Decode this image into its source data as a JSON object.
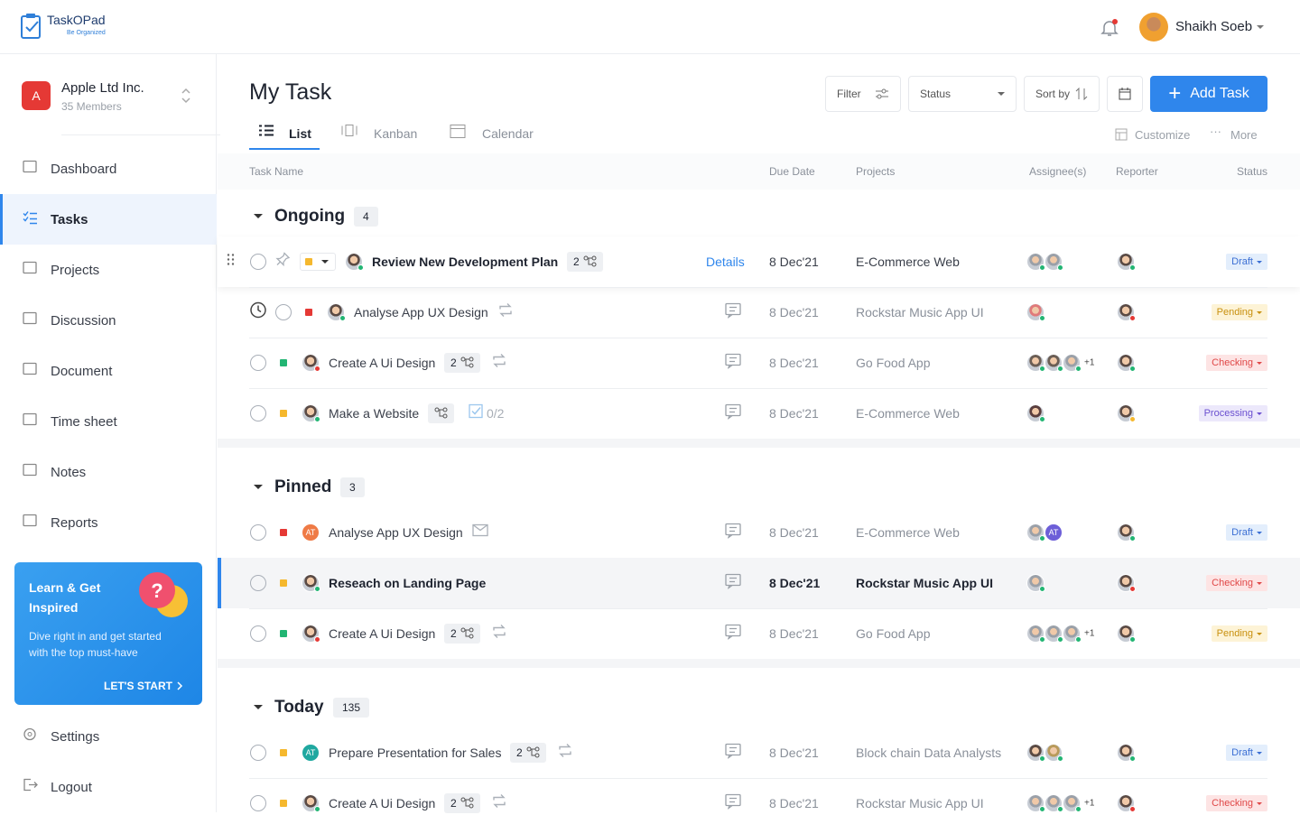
{
  "header": {
    "brand": "TaskOPad",
    "tagline": "Be Organized",
    "user": "Shaikh Soeb"
  },
  "sidebar": {
    "org_initial": "A",
    "org_name": "Apple Ltd Inc.",
    "org_members": "35 Members",
    "nav": [
      "Dashboard",
      "Tasks",
      "Projects",
      "Discussion",
      "Document",
      "Time sheet",
      "Notes",
      "Reports"
    ],
    "active": 1,
    "promo": {
      "title": "Learn & Get Inspired",
      "text": "Dive right in and get started with the top must-have",
      "cta": "LET'S START"
    },
    "footer": [
      "Settings",
      "Logout"
    ]
  },
  "page": {
    "title": "My Task",
    "tabs": [
      "List",
      "Kanban",
      "Calendar"
    ],
    "active_tab": 0,
    "filter": "Filter",
    "status": "Status",
    "sort": "Sort by",
    "add": "Add Task",
    "customize": "Customize",
    "more": "More",
    "columns": [
      "Task Name",
      "Due Date",
      "Projects",
      "Assignee(s)",
      "Reporter",
      "Status"
    ]
  },
  "groups": [
    {
      "name": "Ongoing",
      "count": "4",
      "rows": [
        {
          "name": "Review New Development Plan",
          "subtasks": "2",
          "details": "Details",
          "due": "8 Dec'21",
          "project": "E-Commerce Web",
          "assignees": [
            {
              "color": "#9aa0a8"
            },
            {
              "color": "#9aa0a8"
            }
          ],
          "status": "Draft",
          "status_color": "#3b6fd4",
          "status_bg": "#e3eefc",
          "priority_color": "#f5b82e"
        },
        {
          "name": "Analyse App UX Design",
          "repeat": true,
          "timer": true,
          "due": "8 Dec'21",
          "project": "Rockstar Music App UI",
          "assignees": [
            {
              "color": "#e07a7a"
            }
          ],
          "status": "Pending",
          "status_color": "#c8900f",
          "status_bg": "#fdf3d6",
          "priority_color": "#e53935"
        },
        {
          "name": "Create A Ui Design",
          "subtasks": "2",
          "repeat": true,
          "due": "8 Dec'21",
          "project": "Go Food App",
          "assignees": [
            {
              "color": "#6b5e55"
            },
            {
              "color": "#6b5e55"
            },
            {
              "color": "#9aa0a8"
            }
          ],
          "assignees_more": "+1",
          "status": "Checking",
          "status_color": "#e04848",
          "status_bg": "#fde4e4",
          "priority_color": "#22b573"
        },
        {
          "name": "Make a Website",
          "subtask_icon": true,
          "checklist": "0/2",
          "due": "8 Dec'21",
          "project": "E-Commerce Web",
          "assignees": [
            {
              "color": "#5a3e3e"
            }
          ],
          "status": "Processing",
          "status_color": "#6a4fd0",
          "status_bg": "#ece8fb",
          "priority_color": "#f5b82e"
        }
      ]
    },
    {
      "name": "Pinned",
      "count": "3",
      "rows": [
        {
          "name": "Analyse App UX Design",
          "mail": true,
          "due": "8 Dec'21",
          "project": "E-Commerce Web",
          "assignees": [
            {
              "color": "#9aa0a8"
            },
            {
              "color": "#6d5fd8",
              "label": "AT"
            }
          ],
          "status": "Draft",
          "status_color": "#3b6fd4",
          "status_bg": "#e3eefc",
          "priority_color": "#e53935",
          "avatar": {
            "color": "#ef7a45",
            "label": "AT"
          }
        },
        {
          "name": "Reseach on Landing Page",
          "selected": true,
          "due": "8 Dec'21",
          "project": "Rockstar Music App UI",
          "assignees": [
            {
              "color": "#9aa0a8"
            }
          ],
          "status": "Checking",
          "status_color": "#e04848",
          "status_bg": "#fde4e4",
          "priority_color": "#f5b82e"
        },
        {
          "name": "Create A Ui Design",
          "subtasks": "2",
          "repeat": true,
          "due": "8 Dec'21",
          "project": "Go Food App",
          "assignees": [
            {
              "color": "#9aa0a8"
            },
            {
              "color": "#9aa0a8"
            },
            {
              "color": "#9aa0a8"
            }
          ],
          "assignees_more": "+1",
          "status": "Pending",
          "status_color": "#c8900f",
          "status_bg": "#fdf3d6",
          "priority_color": "#22b573"
        }
      ]
    },
    {
      "name": "Today",
      "count": "135",
      "rows": [
        {
          "name": "Prepare Presentation for  Sales",
          "subtasks": "2",
          "repeat": true,
          "due": "8 Dec'21",
          "project": "Block chain Data Analysts",
          "assignees": [
            {
              "color": "#5a4a44"
            },
            {
              "color": "#b89a5a"
            }
          ],
          "status": "Draft",
          "status_color": "#3b6fd4",
          "status_bg": "#e3eefc",
          "priority_color": "#f5b82e",
          "avatar": {
            "color": "#1fa8a0",
            "label": "AT"
          }
        },
        {
          "name": "Create A Ui Design",
          "subtasks": "2",
          "repeat": true,
          "due": "8 Dec'21",
          "project": "Rockstar Music App UI",
          "assignees": [
            {
              "color": "#9aa0a8"
            },
            {
              "color": "#9aa0a8"
            },
            {
              "color": "#9aa0a8"
            }
          ],
          "assignees_more": "+1",
          "status": "Checking",
          "status_color": "#e04848",
          "status_bg": "#fde4e4",
          "priority_color": "#f5b82e"
        }
      ]
    }
  ]
}
